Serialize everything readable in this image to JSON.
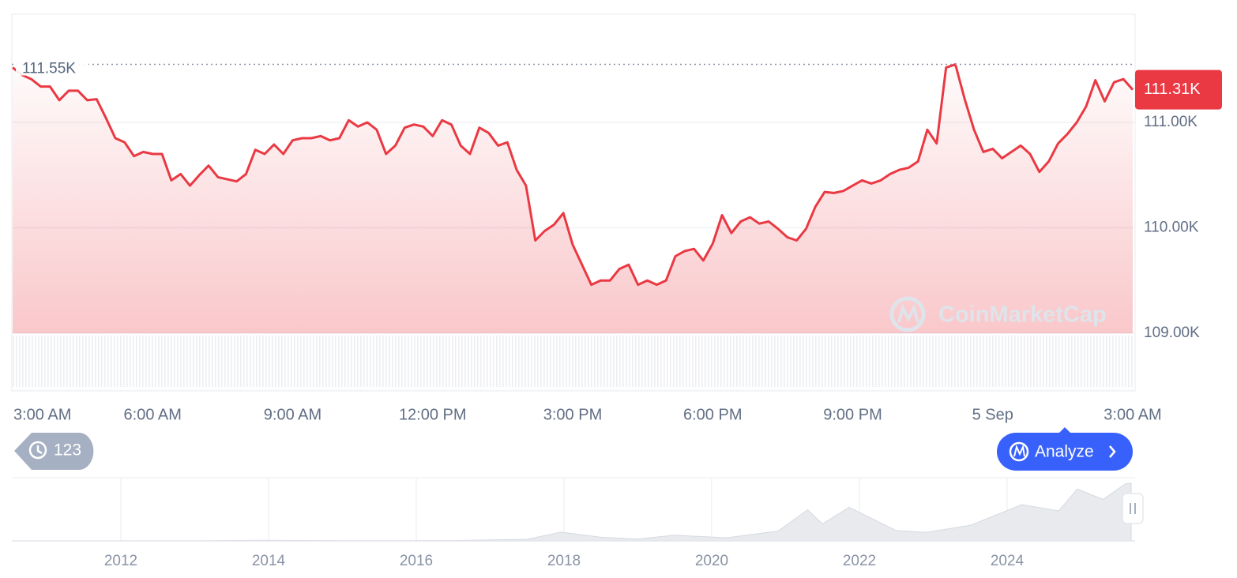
{
  "chart_data": [
    {
      "type": "line",
      "color": "#ea3943",
      "categories": [
        "3:00 AM",
        null,
        null,
        null,
        null,
        null,
        null,
        null,
        null,
        null,
        null,
        null,
        null,
        null,
        null,
        "6:00 AM",
        null,
        null,
        null,
        null,
        null,
        null,
        null,
        null,
        null,
        null,
        null,
        null,
        null,
        null,
        "9:00 AM",
        null,
        null,
        null,
        null,
        null,
        null,
        null,
        null,
        null,
        null,
        null,
        null,
        null,
        null,
        "12:00 PM",
        null,
        null,
        null,
        null,
        null,
        null,
        null,
        null,
        null,
        null,
        null,
        null,
        null,
        null,
        "3:00 PM",
        null,
        null,
        null,
        null,
        null,
        null,
        null,
        null,
        null,
        null,
        null,
        null,
        null,
        null,
        "6:00 PM",
        null,
        null,
        null,
        null,
        null,
        null,
        null,
        null,
        null,
        null,
        null,
        null,
        null,
        null,
        "9:00 PM",
        null,
        null,
        null,
        null,
        null,
        null,
        null,
        null,
        null,
        null,
        null,
        null,
        null,
        null,
        "5 Sep",
        null,
        null,
        null,
        null,
        null,
        null,
        null,
        null,
        null,
        null,
        null,
        null,
        null,
        null,
        "3:00 AM"
      ],
      "values": [
        111520,
        111450,
        111410,
        111340,
        111340,
        111210,
        111300,
        111300,
        111210,
        111220,
        111040,
        110850,
        110810,
        110680,
        110720,
        110700,
        110700,
        110450,
        110510,
        110400,
        110500,
        110590,
        110480,
        110460,
        110440,
        110510,
        110740,
        110700,
        110790,
        110700,
        110830,
        110850,
        110850,
        110870,
        110830,
        110850,
        111020,
        110960,
        111000,
        110930,
        110700,
        110780,
        110950,
        110980,
        110960,
        110870,
        111020,
        110980,
        110780,
        110700,
        110950,
        110900,
        110780,
        110810,
        110550,
        110400,
        109880,
        109970,
        110030,
        110140,
        109840,
        109650,
        109460,
        109500,
        109500,
        109610,
        109650,
        109460,
        109500,
        109460,
        109500,
        109730,
        109780,
        109800,
        109690,
        109850,
        110120,
        109950,
        110060,
        110100,
        110040,
        110060,
        109990,
        109910,
        109880,
        109990,
        110200,
        110340,
        110330,
        110350,
        110400,
        110450,
        110420,
        110450,
        110510,
        110550,
        110570,
        110630,
        110930,
        110800,
        111520,
        111550,
        111220,
        110930,
        110720,
        110750,
        110660,
        110720,
        110780,
        110700,
        110530,
        110630,
        110800,
        110890,
        111000,
        111150,
        111400,
        111200,
        111380,
        111410,
        111310
      ],
      "ylim": [
        109000,
        112026
      ],
      "yticks": [
        {
          "value": 109000,
          "label": "109.00K"
        },
        {
          "value": 110000,
          "label": "110.00K"
        },
        {
          "value": 111000,
          "label": "111.00K"
        }
      ],
      "grid": true,
      "reference_line": {
        "value": 111550,
        "label": "111.55K"
      },
      "last_price": {
        "value": 111310,
        "label": "111.31K"
      },
      "watermark": "CoinMarketCap"
    },
    {
      "type": "area",
      "color": "#e8eaee",
      "x": [
        2010.6,
        2013.0,
        2013.9,
        2015.0,
        2016.5,
        2017.5,
        2017.96,
        2018.5,
        2019.0,
        2019.5,
        2020.2,
        2020.9,
        2021.3,
        2021.5,
        2021.86,
        2022.5,
        2022.9,
        2023.5,
        2024.2,
        2024.7,
        2024.95,
        2025.3,
        2025.6,
        2025.68
      ],
      "values": [
        0,
        200,
        1000,
        300,
        650,
        3000,
        17000,
        7000,
        3700,
        11000,
        6000,
        19000,
        60000,
        33000,
        65000,
        20000,
        16500,
        30000,
        70000,
        58000,
        100000,
        80000,
        110000,
        111300
      ],
      "xlim": [
        2010.524,
        2025.733
      ],
      "ylim": [
        0,
        122000
      ],
      "xticks": [
        2012,
        2014,
        2016,
        2018,
        2020,
        2022,
        2024
      ]
    }
  ],
  "controls": {
    "history_count": 123,
    "analyze": "Analyze"
  }
}
